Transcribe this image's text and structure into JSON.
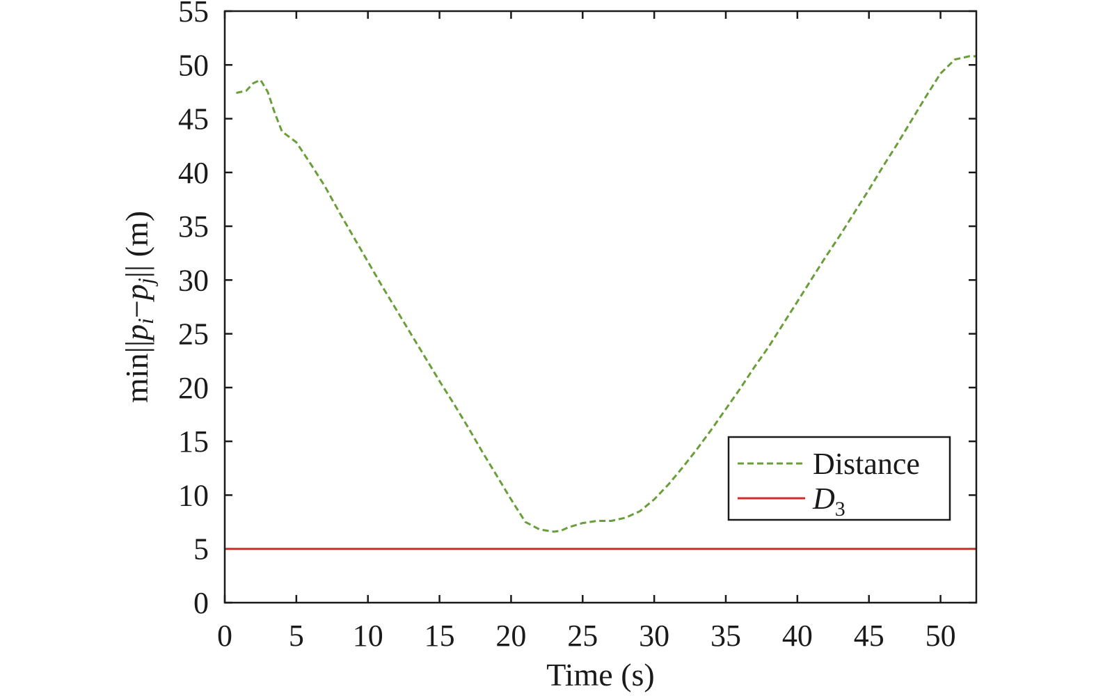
{
  "chart_data": {
    "type": "line",
    "xlabel": "Time (s)",
    "ylabel": {
      "prefix": "min||",
      "p_i_base": "p",
      "p_i_sub": "i",
      "minus": "−",
      "p_j_base": "p",
      "p_j_sub": "j",
      "suffix": "|| (m)"
    },
    "xlim": [
      0,
      52.5
    ],
    "ylim": [
      0,
      55
    ],
    "xticks": [
      0,
      5,
      10,
      15,
      20,
      25,
      30,
      35,
      40,
      45,
      50
    ],
    "yticks": [
      0,
      5,
      10,
      15,
      20,
      25,
      30,
      35,
      40,
      45,
      50,
      55
    ],
    "grid": false,
    "legend_position": "center-right",
    "series": [
      {
        "name": "Distance",
        "style": "dashed",
        "color": "#6a9e3a",
        "x": [
          0.8,
          1.5,
          2.0,
          2.5,
          3.0,
          3.5,
          4.0,
          5.0,
          6.0,
          7.0,
          8.0,
          9.0,
          10.0,
          11.0,
          12.0,
          13.0,
          14.0,
          15.0,
          16.0,
          17.0,
          18.0,
          19.0,
          20.0,
          21.0,
          22.0,
          23.0,
          23.5,
          24.0,
          25.0,
          26.0,
          27.0,
          28.0,
          29.0,
          30.0,
          31.0,
          32.0,
          33.0,
          34.0,
          35.0,
          36.0,
          37.0,
          38.0,
          39.0,
          40.0,
          41.0,
          42.0,
          43.0,
          44.0,
          45.0,
          46.0,
          47.0,
          48.0,
          49.0,
          50.0,
          51.0,
          52.0,
          52.5
        ],
        "y": [
          47.4,
          47.6,
          48.3,
          48.6,
          47.5,
          45.5,
          43.8,
          42.8,
          40.8,
          38.7,
          36.3,
          34.0,
          31.7,
          29.4,
          27.2,
          25.0,
          22.8,
          20.6,
          18.5,
          16.3,
          14.0,
          11.8,
          9.6,
          7.5,
          6.8,
          6.6,
          6.7,
          7.0,
          7.4,
          7.6,
          7.6,
          7.9,
          8.5,
          9.6,
          11.0,
          12.6,
          14.3,
          16.1,
          18.0,
          19.9,
          21.9,
          23.8,
          25.9,
          28.0,
          30.1,
          32.2,
          34.2,
          36.3,
          38.4,
          40.6,
          42.7,
          44.9,
          47.1,
          49.2,
          50.5,
          50.8,
          50.8
        ]
      },
      {
        "name": "D",
        "name_sub": "3",
        "style": "solid",
        "color": "#d42a2a",
        "x": [
          0,
          52.5
        ],
        "y": [
          5,
          5
        ]
      }
    ]
  }
}
